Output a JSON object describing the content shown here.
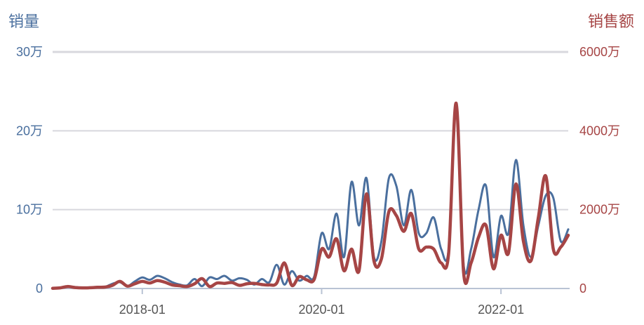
{
  "chart_data": {
    "type": "line",
    "left_axis_title": "销量",
    "right_axis_title": "销售额",
    "left_ticks": [
      "0",
      "10万",
      "20万",
      "30万"
    ],
    "right_ticks": [
      "0",
      "2000万",
      "4000万",
      "6000万"
    ],
    "x_tick_labels": [
      "2018-01",
      "2020-01",
      "2022-01"
    ],
    "x_tick_indices": [
      12,
      36,
      60
    ],
    "left_ylim": [
      0,
      300000
    ],
    "right_ylim": [
      0,
      60000000
    ],
    "grid": true,
    "colors": {
      "volume": "#4a6f9e",
      "revenue": "#a64545",
      "grid": "#d8d8de",
      "left_text": "#4a6f9e",
      "right_text": "#a64545"
    },
    "series": [
      {
        "axis": "left",
        "values": [
          300,
          1200,
          2500,
          1800,
          900,
          1200,
          1500,
          2000,
          6000,
          8000,
          3000,
          9000,
          14000,
          11000,
          16000,
          13000,
          8000,
          5000,
          4000,
          12000,
          3000,
          14000,
          12000,
          16000,
          10000,
          13000,
          11000,
          5000,
          12000,
          8000,
          30000,
          5000,
          22000,
          10000,
          16000,
          15000,
          70000,
          50000,
          95000,
          40000,
          135000,
          80000,
          140000,
          40000,
          60000,
          140000,
          130000,
          80000,
          125000,
          70000,
          70000,
          90000,
          50000,
          50000,
          230000,
          30000,
          50000,
          100000,
          130000,
          40000,
          92000,
          70000,
          163000,
          80000,
          40000,
          80000,
          118000,
          115000,
          60000,
          75000
        ]
      },
      {
        "axis": "right",
        "values": [
          50000,
          150000,
          500000,
          250000,
          150000,
          200000,
          300000,
          350000,
          800000,
          1800000,
          600000,
          1200000,
          1800000,
          1400000,
          2000000,
          1600000,
          900000,
          700000,
          500000,
          1200000,
          2500000,
          500000,
          1400000,
          1300000,
          1500000,
          800000,
          1200000,
          1300000,
          1000000,
          900000,
          1400000,
          6500000,
          800000,
          3000000,
          2200000,
          2300000,
          10000000,
          8000000,
          12600000,
          4500000,
          10000000,
          4500000,
          24000000,
          7000000,
          7500000,
          19500000,
          18500000,
          14500000,
          19000000,
          10000000,
          10500000,
          10000000,
          6500000,
          9000000,
          47000000,
          4000000,
          6500000,
          13000000,
          16000000,
          5000000,
          13500000,
          9000000,
          26500000,
          12000000,
          7000000,
          18000000,
          28500000,
          10000000,
          10500000,
          13500000
        ]
      }
    ]
  }
}
